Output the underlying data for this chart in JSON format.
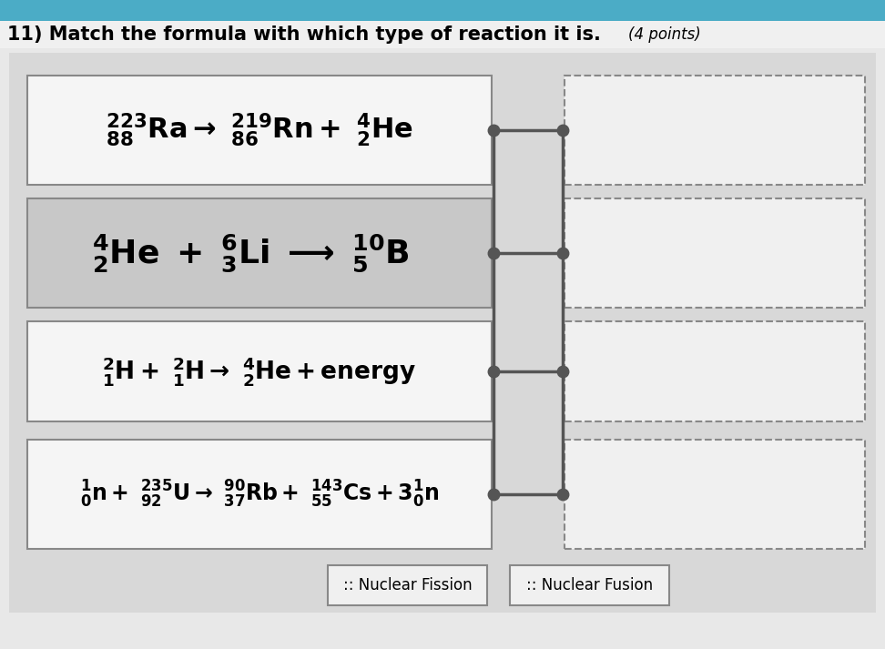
{
  "title": "11) Match the formula with which type of reaction it is.",
  "title_italic": "(4 points)",
  "title_bg": "#b8cce4",
  "page_bg": "#e8e8e8",
  "content_bg": "#d8d8d8",
  "eq_box_bgs": [
    "#f5f5f5",
    "#c8c8c8",
    "#f5f5f5",
    "#f5f5f5"
  ],
  "eq_box_border": "#888888",
  "right_box_bg": "#f0f0f0",
  "right_box_border": "#888888",
  "connector_color": "#555555",
  "dot_color": "#555555",
  "label_box_bg": "#f0f0f0",
  "label_box_border": "#888888",
  "labels": [
    ":: Nuclear Fission",
    ":: Nuclear Fusion"
  ]
}
